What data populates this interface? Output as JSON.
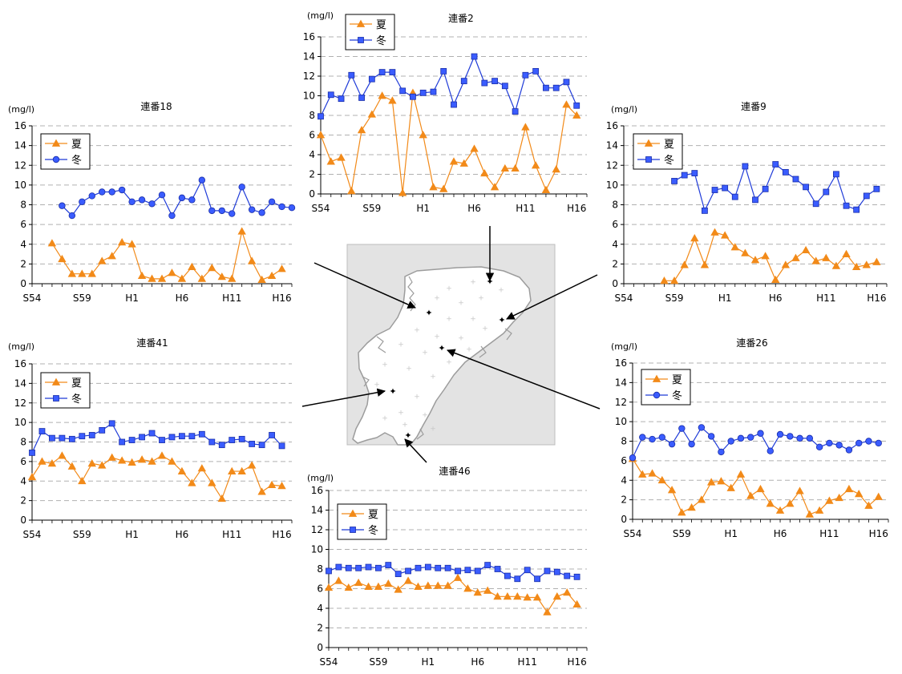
{
  "colors": {
    "summer": "#f28a19",
    "winter": "#1f3bd8",
    "grid": "#b0b0b0",
    "map_bg": "#e3e3e3",
    "map_land": "#ffffff"
  },
  "legend": {
    "summer": "夏",
    "winter": "冬"
  },
  "unit": "(mg/l)",
  "chart_data": [
    {
      "id": "c2",
      "type": "line",
      "title": "連番2",
      "ylim": [
        0,
        16
      ],
      "yticks": [
        0,
        2,
        4,
        6,
        8,
        10,
        12,
        14,
        16
      ],
      "xticklabels": [
        "S54",
        "S59",
        "H1",
        "H6",
        "H11",
        "H16"
      ],
      "xrange": [
        54,
        80
      ],
      "x_label_positions": [
        54,
        59,
        64,
        69,
        74,
        79
      ],
      "grid": true,
      "legend_position": "top-left",
      "summer_marker": "triangle",
      "winter_marker": "square",
      "series": [
        {
          "name": "夏",
          "x": [
            54,
            55,
            56,
            57,
            58,
            59,
            60,
            61,
            62,
            63,
            64,
            65,
            66,
            67,
            68,
            69,
            70,
            71,
            72,
            73,
            74,
            75,
            76,
            77,
            78,
            79
          ],
          "values": [
            6.0,
            3.3,
            3.7,
            0.3,
            6.5,
            8.1,
            10.0,
            9.5,
            0.1,
            10.3,
            6.0,
            0.7,
            0.5,
            3.3,
            3.1,
            4.6,
            2.1,
            0.7,
            2.6,
            2.6,
            6.8,
            2.9,
            0.4,
            2.5,
            9.1,
            8.0
          ]
        },
        {
          "name": "冬",
          "x": [
            54,
            55,
            56,
            57,
            58,
            59,
            60,
            61,
            62,
            63,
            64,
            65,
            66,
            67,
            68,
            69,
            70,
            71,
            72,
            73,
            74,
            75,
            76,
            77,
            78,
            79
          ],
          "values": [
            7.9,
            10.1,
            9.7,
            12.1,
            9.8,
            11.7,
            12.4,
            12.4,
            10.5,
            9.9,
            10.3,
            10.4,
            12.5,
            9.1,
            11.5,
            14.0,
            11.3,
            11.5,
            11.0,
            8.4,
            12.1,
            12.5,
            10.8,
            10.8,
            11.4,
            9.0
          ]
        }
      ]
    },
    {
      "id": "c18",
      "type": "line",
      "title": "連番18",
      "ylim": [
        0,
        16
      ],
      "yticks": [
        0,
        2,
        4,
        6,
        8,
        10,
        12,
        14,
        16
      ],
      "xticklabels": [
        "S54",
        "S59",
        "H1",
        "H6",
        "H11",
        "H16"
      ],
      "xrange": [
        54,
        80
      ],
      "x_label_positions": [
        54,
        59,
        64,
        69,
        74,
        79
      ],
      "grid": true,
      "legend_position": "top-left",
      "summer_marker": "triangle",
      "winter_marker": "circle",
      "series": [
        {
          "name": "夏",
          "x": [
            56,
            57,
            58,
            59,
            60,
            61,
            62,
            63,
            64,
            65,
            66,
            67,
            68,
            69,
            70,
            71,
            72,
            73,
            74,
            75,
            76,
            77,
            78,
            79
          ],
          "values": [
            4.1,
            2.5,
            1.0,
            1.0,
            1.0,
            2.3,
            2.8,
            4.2,
            4.0,
            0.8,
            0.5,
            0.5,
            1.1,
            0.5,
            1.7,
            0.5,
            1.6,
            0.7,
            0.5,
            5.3,
            2.3,
            0.4,
            0.8,
            1.5
          ]
        },
        {
          "name": "冬",
          "x": [
            57,
            58,
            59,
            60,
            61,
            62,
            63,
            64,
            65,
            66,
            67,
            68,
            69,
            70,
            71,
            72,
            73,
            74,
            75,
            76,
            77,
            78,
            79,
            80
          ],
          "values": [
            7.9,
            6.9,
            8.3,
            8.9,
            9.3,
            9.3,
            9.5,
            8.3,
            8.5,
            8.1,
            9.0,
            6.9,
            8.7,
            8.5,
            10.5,
            7.4,
            7.4,
            7.1,
            9.8,
            7.5,
            7.2,
            8.3,
            7.8,
            7.7
          ]
        }
      ]
    },
    {
      "id": "c9",
      "type": "line",
      "title": "連番9",
      "ylim": [
        0,
        16
      ],
      "yticks": [
        0,
        2,
        4,
        6,
        8,
        10,
        12,
        14,
        16
      ],
      "xticklabels": [
        "S54",
        "S59",
        "H1",
        "H6",
        "H11",
        "H16"
      ],
      "xrange": [
        54,
        80
      ],
      "x_label_positions": [
        54,
        59,
        64,
        69,
        74,
        79
      ],
      "grid": true,
      "legend_position": "top-left",
      "summer_marker": "triangle",
      "winter_marker": "square",
      "series": [
        {
          "name": "夏",
          "x": [
            58,
            59,
            60,
            61,
            62,
            63,
            64,
            65,
            66,
            67,
            68,
            69,
            70,
            71,
            72,
            73,
            74,
            75,
            76,
            77,
            78,
            79
          ],
          "values": [
            0.3,
            0.3,
            1.9,
            4.6,
            1.9,
            5.2,
            4.9,
            3.7,
            3.1,
            2.4,
            2.8,
            0.4,
            1.9,
            2.6,
            3.4,
            2.3,
            2.6,
            1.8,
            3.0,
            1.7,
            1.9,
            2.2
          ]
        },
        {
          "name": "冬",
          "x": [
            59,
            60,
            61,
            62,
            63,
            64,
            65,
            66,
            67,
            68,
            69,
            70,
            71,
            72,
            73,
            74,
            75,
            76,
            77,
            78,
            79
          ],
          "values": [
            10.4,
            11.0,
            11.2,
            7.4,
            9.5,
            9.7,
            8.8,
            11.9,
            8.5,
            9.6,
            12.1,
            11.3,
            10.6,
            9.8,
            8.1,
            9.3,
            11.1,
            7.9,
            7.5,
            8.9,
            9.6
          ]
        }
      ]
    },
    {
      "id": "c41",
      "type": "line",
      "title": "連番41",
      "ylim": [
        0,
        16
      ],
      "yticks": [
        0,
        2,
        4,
        6,
        8,
        10,
        12,
        14,
        16
      ],
      "xticklabels": [
        "S54",
        "S59",
        "H1",
        "H6",
        "H11",
        "H16"
      ],
      "xrange": [
        54,
        80
      ],
      "x_label_positions": [
        54,
        59,
        64,
        69,
        74,
        79
      ],
      "grid": true,
      "legend_position": "top-left",
      "summer_marker": "triangle",
      "winter_marker": "square",
      "series": [
        {
          "name": "夏",
          "x": [
            54,
            55,
            56,
            57,
            58,
            59,
            60,
            61,
            62,
            63,
            64,
            65,
            66,
            67,
            68,
            69,
            70,
            71,
            72,
            73,
            74,
            75,
            76,
            77,
            78,
            79
          ],
          "values": [
            4.4,
            6.0,
            5.8,
            6.6,
            5.5,
            4.0,
            5.8,
            5.6,
            6.4,
            6.1,
            5.9,
            6.2,
            6.0,
            6.6,
            6.0,
            5.0,
            3.8,
            5.3,
            3.8,
            2.2,
            5.0,
            5.0,
            5.6,
            2.9,
            3.6,
            3.5
          ]
        },
        {
          "name": "冬",
          "x": [
            54,
            55,
            56,
            57,
            58,
            59,
            60,
            61,
            62,
            63,
            64,
            65,
            66,
            67,
            68,
            69,
            70,
            71,
            72,
            73,
            74,
            75,
            76,
            77,
            78,
            79
          ],
          "values": [
            6.9,
            9.1,
            8.4,
            8.4,
            8.3,
            8.6,
            8.7,
            9.2,
            9.9,
            8.0,
            8.2,
            8.5,
            8.9,
            8.2,
            8.5,
            8.6,
            8.6,
            8.8,
            8.0,
            7.7,
            8.2,
            8.3,
            7.8,
            7.7,
            8.7,
            7.6
          ]
        }
      ]
    },
    {
      "id": "c26",
      "type": "line",
      "title": "連番26",
      "ylim": [
        0,
        16
      ],
      "yticks": [
        0,
        2,
        4,
        6,
        8,
        10,
        12,
        14,
        16
      ],
      "xticklabels": [
        "S54",
        "S59",
        "H1",
        "H6",
        "H11",
        "H16"
      ],
      "xrange": [
        54,
        80
      ],
      "x_label_positions": [
        54,
        59,
        64,
        69,
        74,
        79
      ],
      "grid": true,
      "legend_position": "top-left",
      "summer_marker": "triangle",
      "winter_marker": "circle",
      "series": [
        {
          "name": "夏",
          "x": [
            54,
            55,
            56,
            57,
            58,
            59,
            60,
            61,
            62,
            63,
            64,
            65,
            66,
            67,
            68,
            69,
            70,
            71,
            72,
            73,
            74,
            75,
            76,
            77,
            78,
            79
          ],
          "values": [
            6.2,
            4.6,
            4.7,
            4.0,
            3.0,
            0.7,
            1.2,
            2.0,
            3.8,
            3.9,
            3.2,
            4.6,
            2.4,
            3.1,
            1.6,
            0.9,
            1.6,
            2.9,
            0.5,
            0.9,
            1.9,
            2.2,
            3.1,
            2.6,
            1.4,
            2.3
          ]
        },
        {
          "name": "冬",
          "x": [
            54,
            55,
            56,
            57,
            58,
            59,
            60,
            61,
            62,
            63,
            64,
            65,
            66,
            67,
            68,
            69,
            70,
            71,
            72,
            73,
            74,
            75,
            76,
            77,
            78,
            79
          ],
          "values": [
            6.3,
            8.4,
            8.2,
            8.4,
            7.7,
            9.3,
            7.7,
            9.4,
            8.5,
            6.9,
            8.0,
            8.3,
            8.4,
            8.8,
            7.0,
            8.7,
            8.5,
            8.3,
            8.3,
            7.4,
            7.8,
            7.6,
            7.1,
            7.8,
            8.0,
            7.8
          ]
        }
      ]
    },
    {
      "id": "c46",
      "type": "line",
      "title": "連番46",
      "ylim": [
        0,
        16
      ],
      "yticks": [
        0,
        2,
        4,
        6,
        8,
        10,
        12,
        14,
        16
      ],
      "xticklabels": [
        "S54",
        "S59",
        "H1",
        "H6",
        "H11",
        "H16"
      ],
      "xrange": [
        54,
        80
      ],
      "x_label_positions": [
        54,
        59,
        64,
        69,
        74,
        79
      ],
      "grid": true,
      "legend_position": "top-left",
      "summer_marker": "triangle",
      "winter_marker": "square",
      "series": [
        {
          "name": "夏",
          "x": [
            54,
            55,
            56,
            57,
            58,
            59,
            60,
            61,
            62,
            63,
            64,
            65,
            66,
            67,
            68,
            69,
            70,
            71,
            72,
            73,
            74,
            75,
            76,
            77,
            78,
            79
          ],
          "values": [
            6.1,
            6.8,
            6.1,
            6.6,
            6.2,
            6.2,
            6.5,
            5.9,
            6.8,
            6.2,
            6.3,
            6.3,
            6.3,
            7.1,
            6.0,
            5.6,
            5.8,
            5.2,
            5.2,
            5.2,
            5.1,
            5.1,
            3.6,
            5.2,
            5.6,
            4.4
          ]
        },
        {
          "name": "冬",
          "x": [
            54,
            55,
            56,
            57,
            58,
            59,
            60,
            61,
            62,
            63,
            64,
            65,
            66,
            67,
            68,
            69,
            70,
            71,
            72,
            73,
            74,
            75,
            76,
            77,
            78,
            79
          ],
          "values": [
            7.8,
            8.2,
            8.1,
            8.1,
            8.2,
            8.1,
            8.4,
            7.5,
            7.8,
            8.1,
            8.2,
            8.1,
            8.1,
            7.8,
            7.9,
            7.8,
            8.4,
            8.0,
            7.3,
            7.0,
            7.9,
            7.0,
            7.8,
            7.7,
            7.3,
            7.2
          ]
        }
      ]
    }
  ]
}
